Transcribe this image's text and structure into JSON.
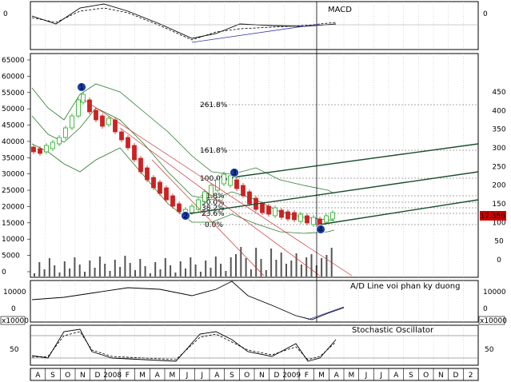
{
  "chart_data": [
    {
      "type": "line",
      "panel": "macd",
      "title": "MACD",
      "y_ticks_left": [
        "0"
      ],
      "y_ticks_right": [
        "0"
      ],
      "series": [],
      "grid": true
    },
    {
      "type": "candlestick",
      "panel": "price",
      "y_ticks_left": [
        "65000",
        "60000",
        "55000",
        "50000",
        "45000",
        "40000",
        "35000",
        "30000",
        "25000",
        "20000",
        "15000",
        "10000",
        "5000",
        "0"
      ],
      "y_ticks_right": [
        "450",
        "400",
        "350",
        "300",
        "250",
        "200",
        "150",
        "100",
        "50",
        "0"
      ],
      "last_price_label": "17.350",
      "wave_labels": [
        "1",
        "2",
        "3",
        "4"
      ],
      "fibonacci_levels": [
        {
          "label": "261.8%"
        },
        {
          "label": "161.8%"
        },
        {
          "label": "100.0%"
        },
        {
          "label": "61.8%"
        },
        {
          "label": "50.0%"
        },
        {
          "label": "38.2%"
        },
        {
          "label": "23.6%"
        },
        {
          "label": "0.0%"
        }
      ],
      "overlays": [
        "bollinger-bands",
        "trend-channels",
        "volume-bars"
      ],
      "grid": true
    },
    {
      "type": "line",
      "panel": "ad_line",
      "title": "A/D Line voi phan ky duong",
      "y_ticks_left": [
        "10000",
        "0"
      ],
      "y_ticks_right": [
        "10000",
        "0"
      ],
      "scale_note_left": "x10000",
      "scale_note_right": "x10000",
      "grid": true
    },
    {
      "type": "line",
      "panel": "stochastic",
      "title": "Stochastic Oscillator",
      "y_ticks_left": [
        "50"
      ],
      "y_ticks_right": [
        "50"
      ],
      "grid": true
    }
  ],
  "x_axis": {
    "tick_labels": [
      "A",
      "S",
      "O",
      "N",
      "D",
      "2008",
      "F",
      "M",
      "A",
      "M",
      "J",
      "J",
      "A",
      "S",
      "O",
      "N",
      "D",
      "2009",
      "F",
      "M",
      "A",
      "M",
      "J",
      "J",
      "A",
      "S",
      "O",
      "N",
      "D",
      "2"
    ]
  },
  "colors": {
    "up_candle": "#22aa22",
    "down_candle": "#cc2222",
    "bollinger": "#2e7d2e",
    "trendline": "#1b4d2e",
    "downtrend": "#cc3333",
    "signal": "#000000",
    "marker": "#1a3da8",
    "price_tag": "#cc0000"
  }
}
